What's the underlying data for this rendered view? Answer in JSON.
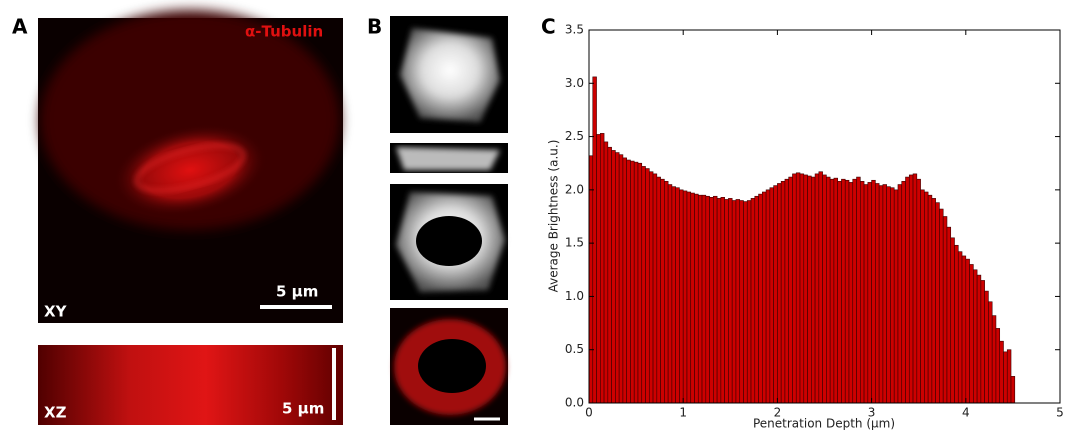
{
  "panel_labels": [
    "A",
    "B",
    "C"
  ],
  "panel_a": {
    "channel": "α-Tubulin",
    "xy_label": "XY",
    "xy_scale": "5 μm",
    "xz_label": "XZ",
    "xz_scale": "5 μm"
  },
  "chart_data": {
    "type": "histogram",
    "xlabel": "Penetration Depth (μm)",
    "ylabel": "Average Brightness (a.u.)",
    "color": "#cc0000",
    "edgecolor": "#3a0000",
    "xlim": [
      0,
      5
    ],
    "ylim": [
      0,
      3.5
    ],
    "xticks": [
      0,
      1,
      2,
      3,
      4,
      5
    ],
    "yticks": [
      {
        "value": 0,
        "label": "0.0"
      },
      {
        "value": 0.5,
        "label": "0.5"
      },
      {
        "value": 1,
        "label": "1.0"
      },
      {
        "value": 1.5,
        "label": "1.5"
      },
      {
        "value": 2,
        "label": "2.0"
      },
      {
        "value": 2.5,
        "label": "2.5"
      },
      {
        "value": 3,
        "label": "3.0"
      },
      {
        "value": 3.5,
        "label": "3.5"
      }
    ],
    "bins": [
      0,
      0.04,
      0.08,
      0.12,
      0.16,
      0.2,
      0.24,
      0.28,
      0.32,
      0.36,
      0.4,
      0.44,
      0.48,
      0.52,
      0.56,
      0.6,
      0.64,
      0.68,
      0.72,
      0.76,
      0.8,
      0.84,
      0.88,
      0.92,
      0.96,
      1,
      1.04,
      1.08,
      1.12,
      1.16,
      1.2,
      1.24,
      1.28,
      1.32,
      1.36,
      1.4,
      1.44,
      1.48,
      1.52,
      1.56,
      1.6,
      1.64,
      1.68,
      1.72,
      1.76,
      1.8,
      1.84,
      1.88,
      1.92,
      1.96,
      2,
      2.04,
      2.08,
      2.12,
      2.16,
      2.2,
      2.24,
      2.28,
      2.32,
      2.36,
      2.4,
      2.44,
      2.48,
      2.52,
      2.56,
      2.6,
      2.64,
      2.68,
      2.72,
      2.76,
      2.8,
      2.84,
      2.88,
      2.92,
      2.96,
      3,
      3.04,
      3.08,
      3.12,
      3.16,
      3.2,
      3.24,
      3.28,
      3.32,
      3.36,
      3.4,
      3.44,
      3.48,
      3.52,
      3.56,
      3.6,
      3.64,
      3.68,
      3.72,
      3.76,
      3.8,
      3.84,
      3.88,
      3.92,
      3.96,
      4,
      4.04,
      4.08,
      4.12,
      4.16,
      4.2,
      4.24,
      4.28,
      4.32,
      4.36,
      4.4,
      4.44,
      4.48,
      4.52
    ],
    "values": [
      2.32,
      3.06,
      2.52,
      2.53,
      2.45,
      2.4,
      2.37,
      2.35,
      2.33,
      2.3,
      2.28,
      2.27,
      2.26,
      2.25,
      2.22,
      2.2,
      2.17,
      2.15,
      2.12,
      2.1,
      2.08,
      2.05,
      2.03,
      2.02,
      2.0,
      1.99,
      1.98,
      1.97,
      1.96,
      1.95,
      1.95,
      1.94,
      1.93,
      1.94,
      1.92,
      1.93,
      1.91,
      1.92,
      1.9,
      1.91,
      1.9,
      1.89,
      1.9,
      1.92,
      1.94,
      1.96,
      1.98,
      2.0,
      2.02,
      2.04,
      2.06,
      2.08,
      2.1,
      2.12,
      2.15,
      2.16,
      2.15,
      2.14,
      2.13,
      2.12,
      2.15,
      2.17,
      2.14,
      2.12,
      2.1,
      2.11,
      2.08,
      2.1,
      2.09,
      2.07,
      2.1,
      2.12,
      2.08,
      2.05,
      2.07,
      2.09,
      2.06,
      2.04,
      2.05,
      2.03,
      2.02,
      2.0,
      2.05,
      2.08,
      2.12,
      2.14,
      2.15,
      2.1,
      2.0,
      1.98,
      1.95,
      1.92,
      1.88,
      1.82,
      1.75,
      1.65,
      1.55,
      1.48,
      1.42,
      1.38,
      1.35,
      1.3,
      1.25,
      1.2,
      1.15,
      1.05,
      0.95,
      0.82,
      0.7,
      0.58,
      0.48,
      0.5,
      0.25
    ]
  }
}
